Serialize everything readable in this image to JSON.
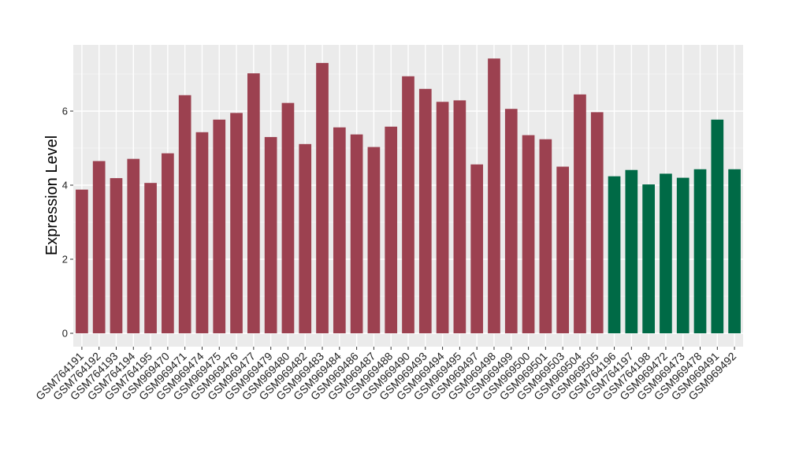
{
  "chart_data": {
    "type": "bar",
    "title": "",
    "xlabel": "",
    "ylabel": "Expression Level",
    "ylim": [
      0,
      7.7
    ],
    "yticks": [
      0,
      2,
      4,
      6
    ],
    "grid": true,
    "legend": "none",
    "categories": [
      "GSM764191",
      "GSM764192",
      "GSM764193",
      "GSM764194",
      "GSM764195",
      "GSM969470",
      "GSM969471",
      "GSM969474",
      "GSM969475",
      "GSM969476",
      "GSM969477",
      "GSM969479",
      "GSM969480",
      "GSM969482",
      "GSM969483",
      "GSM969484",
      "GSM969486",
      "GSM969487",
      "GSM969488",
      "GSM969490",
      "GSM969493",
      "GSM969494",
      "GSM969495",
      "GSM969497",
      "GSM969498",
      "GSM969499",
      "GSM969500",
      "GSM969501",
      "GSM969503",
      "GSM969504",
      "GSM969505",
      "GSM764196",
      "GSM764197",
      "GSM764198",
      "GSM969472",
      "GSM969473",
      "GSM969478",
      "GSM969491",
      "GSM969492"
    ],
    "values": [
      3.88,
      4.65,
      4.19,
      4.71,
      4.06,
      4.86,
      6.43,
      5.43,
      5.77,
      5.95,
      7.02,
      5.3,
      6.22,
      5.11,
      7.3,
      5.56,
      5.37,
      5.03,
      5.58,
      6.94,
      6.6,
      6.25,
      6.29,
      4.56,
      7.42,
      6.06,
      5.35,
      5.24,
      4.5,
      6.45,
      5.97,
      4.24,
      4.41,
      4.02,
      4.31,
      4.2,
      4.43,
      5.77,
      4.43
    ],
    "group_sizes": [
      31,
      8
    ],
    "colors": [
      "#9c4150",
      "#006a46"
    ]
  }
}
